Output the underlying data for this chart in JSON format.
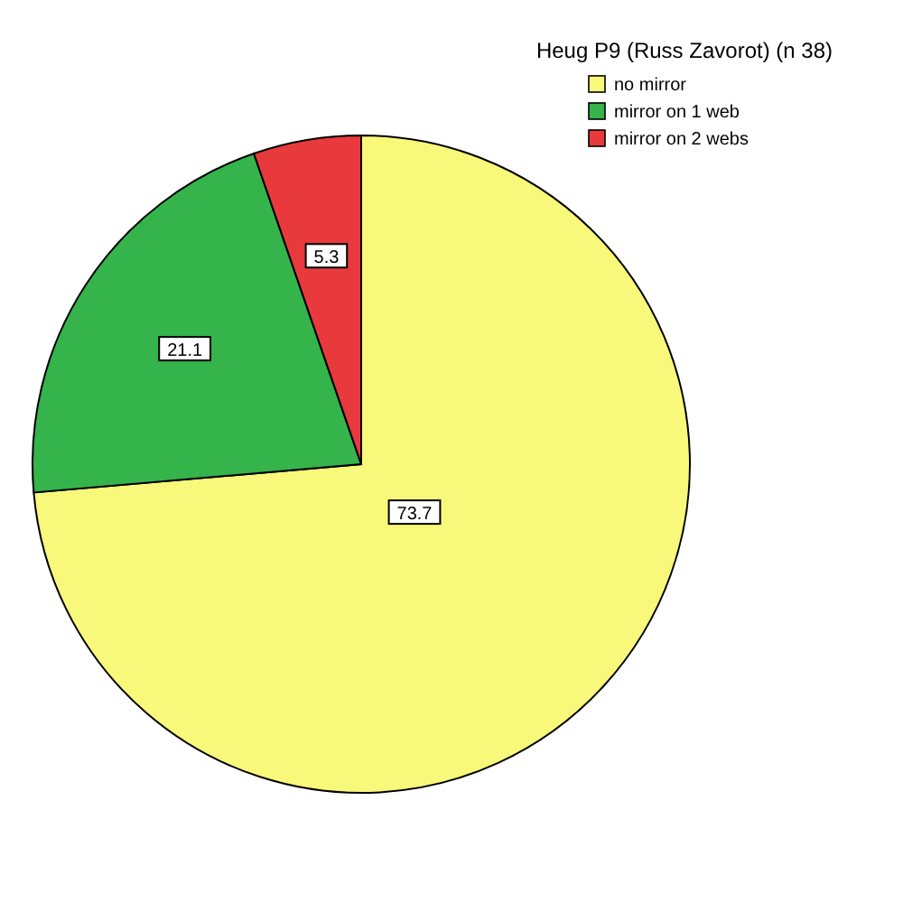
{
  "chart_data": {
    "type": "pie",
    "legend_title": "Heug P9 (Russ Zavorot) (n 38)",
    "categories": [
      "no mirror",
      "mirror on 1 web",
      "mirror on 2 webs"
    ],
    "values": [
      73.7,
      21.1,
      5.3
    ],
    "colors": [
      "#f8f87a",
      "#34b44a",
      "#e83a3c"
    ],
    "data_labels": true,
    "legend": "top right"
  }
}
